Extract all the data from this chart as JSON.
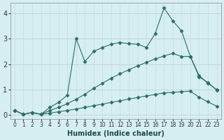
{
  "xlabel": "Humidex (Indice chaleur)",
  "bg_color": "#d6eef0",
  "grid_color_minor": "#c5e0e3",
  "grid_color_major": "#c5c5c5",
  "red_line_color": "#d08080",
  "line_color": "#2a6e65",
  "xlim": [
    -0.5,
    23.5
  ],
  "ylim": [
    -0.15,
    4.4
  ],
  "xticks": [
    0,
    1,
    2,
    3,
    4,
    5,
    6,
    7,
    8,
    9,
    10,
    11,
    12,
    13,
    14,
    15,
    16,
    17,
    18,
    19,
    20,
    21,
    22,
    23
  ],
  "yticks": [
    0,
    1,
    2,
    3,
    4
  ],
  "series1_x": [
    0,
    1,
    2,
    3,
    4,
    5,
    6,
    7,
    8,
    9,
    10,
    11,
    12,
    13,
    14,
    15,
    16,
    17,
    18,
    19,
    20,
    21,
    22,
    23
  ],
  "series1_y": [
    0.18,
    0.03,
    0.1,
    0.03,
    0.08,
    0.13,
    0.18,
    0.24,
    0.3,
    0.37,
    0.43,
    0.5,
    0.56,
    0.63,
    0.69,
    0.75,
    0.81,
    0.87,
    0.89,
    0.92,
    0.94,
    0.7,
    0.52,
    0.35
  ],
  "series2_x": [
    0,
    1,
    2,
    3,
    4,
    5,
    6,
    7,
    8,
    9,
    10,
    11,
    12,
    13,
    14,
    15,
    16,
    17,
    18,
    19,
    20,
    21,
    22,
    23
  ],
  "series2_y": [
    0.18,
    0.03,
    0.1,
    0.03,
    0.18,
    0.3,
    0.45,
    0.62,
    0.82,
    1.05,
    1.25,
    1.45,
    1.62,
    1.78,
    1.93,
    2.07,
    2.2,
    2.32,
    2.42,
    2.3,
    2.3,
    1.55,
    1.25,
    1.0
  ],
  "series3_x": [
    0,
    1,
    2,
    3,
    4,
    5,
    6,
    7,
    8,
    9,
    10,
    11,
    12,
    13,
    14,
    15,
    16,
    17,
    18,
    19,
    20,
    21,
    22,
    23
  ],
  "series3_y": [
    0.18,
    0.03,
    0.1,
    0.03,
    0.3,
    0.5,
    0.78,
    3.0,
    2.1,
    2.5,
    2.65,
    2.78,
    2.85,
    2.8,
    2.78,
    2.65,
    3.2,
    4.2,
    3.7,
    3.3,
    2.3,
    1.5,
    1.28,
    0.98
  ]
}
